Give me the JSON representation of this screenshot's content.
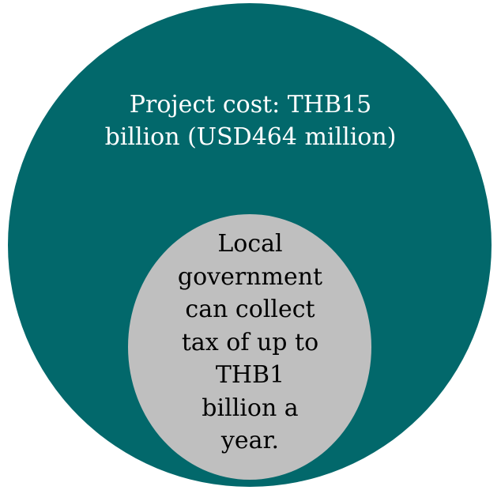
{
  "diagram": {
    "outer": {
      "label": "Project cost: THB15\nbillion (USD464 million)",
      "color": "#02686b"
    },
    "inner": {
      "label": "Local\ngovernment\ncan collect\ntax of up to\nTHB1\nbillion a\nyear.",
      "color": "#bfbfbf"
    }
  }
}
